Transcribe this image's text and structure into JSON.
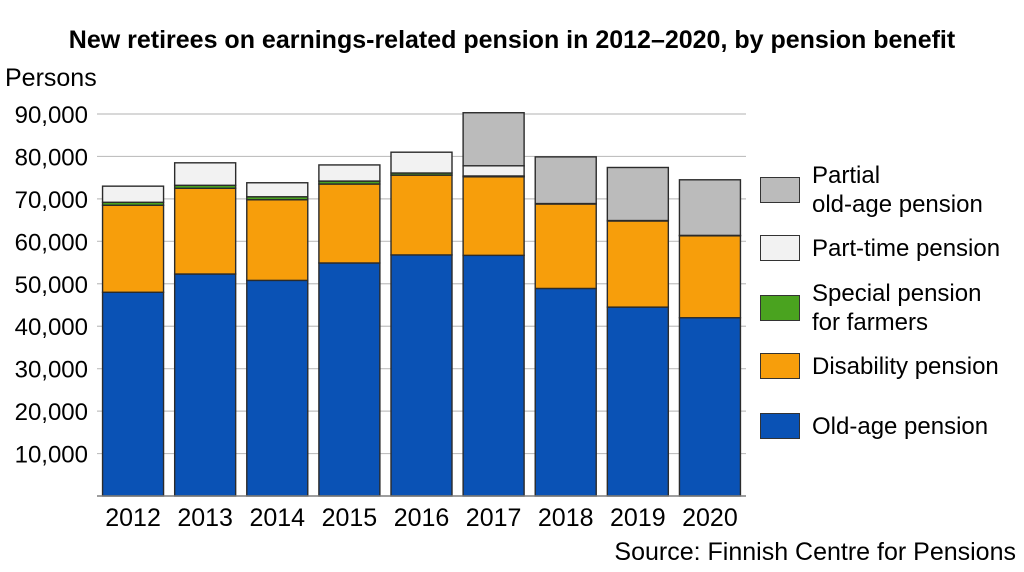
{
  "chart_data": {
    "type": "bar",
    "stacked": true,
    "title": "New retirees on earnings-related pension in 2012–2020, by pension benefit",
    "ylabel": "Persons",
    "xlabel": "",
    "ylim": [
      0,
      90000
    ],
    "yticks": [
      10000,
      20000,
      30000,
      40000,
      50000,
      60000,
      70000,
      80000,
      90000
    ],
    "ytick_labels": [
      "10,000",
      "20,000",
      "30,000",
      "40,000",
      "50,000",
      "60,000",
      "70,000",
      "80,000",
      "90,000"
    ],
    "grid": true,
    "legend_position": "right",
    "categories": [
      "2012",
      "2013",
      "2014",
      "2015",
      "2016",
      "2017",
      "2018",
      "2019",
      "2020"
    ],
    "series": [
      {
        "name": "Old-age pension",
        "color": "#0a52b5",
        "values": [
          48000,
          52300,
          50800,
          54900,
          56800,
          56700,
          48900,
          44500,
          42000
        ]
      },
      {
        "name": "Disability pension",
        "color": "#f79e0b",
        "values": [
          20500,
          20200,
          19000,
          18600,
          18800,
          18500,
          19900,
          20300,
          19300
        ]
      },
      {
        "name": "Special pension for farmers",
        "color": "#4aa31f",
        "values": [
          700,
          700,
          700,
          700,
          500,
          200,
          100,
          100,
          100
        ]
      },
      {
        "name": "Part-time pension",
        "color": "#f2f2f2",
        "values": [
          3800,
          5300,
          3300,
          3800,
          4900,
          2400,
          0,
          0,
          0
        ]
      },
      {
        "name": "Partial old-age pension",
        "color": "#bbbbbb",
        "values": [
          0,
          0,
          0,
          0,
          0,
          12500,
          11000,
          12500,
          13100
        ]
      }
    ],
    "legend_order": [
      {
        "label_lines": [
          "Partial",
          "old-age pension"
        ],
        "color": "#bbbbbb"
      },
      {
        "label_lines": [
          "Part-time pension"
        ],
        "color": "#f2f2f2"
      },
      {
        "label_lines": [
          "Special pension",
          "for farmers"
        ],
        "color": "#4aa31f"
      },
      {
        "label_lines": [
          "Disability pension"
        ],
        "color": "#f79e0b"
      },
      {
        "label_lines": [
          "Old-age pension"
        ],
        "color": "#0a52b5"
      }
    ],
    "source": "Source: Finnish Centre for Pensions"
  }
}
